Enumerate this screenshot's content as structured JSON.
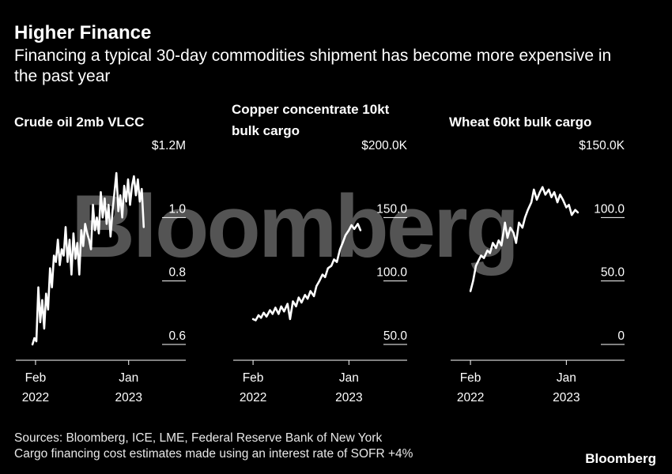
{
  "header": {
    "title": "Higher Finance",
    "subtitle": "Financing a typical 30-day commodities shipment has become more expensive in the past year"
  },
  "footer": {
    "source_line1": "Sources: Bloomberg, ICE, LME, Federal Reserve Bank of New York",
    "source_line2": "Cargo financing cost estimates made using an interest rate of SOFR +4%",
    "brand": "Bloomberg"
  },
  "watermark": "Bloomberg",
  "colors": {
    "background": "#000000",
    "line": "#ffffff",
    "grid": "#ffffff",
    "text": "#ffffff"
  },
  "chart_data": [
    {
      "type": "line",
      "title": "Crude oil 2mb VLCC",
      "title_lines": [
        "Crude oil 2mb VLCC"
      ],
      "x_ticks": [
        {
          "date": "2022-02-01",
          "line1": "Feb",
          "line2": "2022"
        },
        {
          "date": "2023-01-01",
          "line1": "Jan",
          "line2": "2023"
        }
      ],
      "x_range": [
        "2022-01-18",
        "2023-05-15"
      ],
      "ylim": [
        0.6,
        1.2
      ],
      "y_ticks": [
        {
          "value": 1.2,
          "label": "$1.2M"
        },
        {
          "value": 1.0,
          "label": "1.0"
        },
        {
          "value": 0.8,
          "label": "0.8"
        },
        {
          "value": 0.6,
          "label": "0.6"
        }
      ],
      "grid": true,
      "series": [
        {
          "x": [
            "2022-01-21",
            "2022-01-28",
            "2022-02-04",
            "2022-02-11",
            "2022-02-18",
            "2022-02-25",
            "2022-03-04",
            "2022-03-11",
            "2022-03-18",
            "2022-03-25",
            "2022-04-01",
            "2022-04-08",
            "2022-04-15",
            "2022-04-22",
            "2022-04-29",
            "2022-05-06",
            "2022-05-13",
            "2022-05-20",
            "2022-05-27",
            "2022-06-03",
            "2022-06-10",
            "2022-06-17",
            "2022-06-24",
            "2022-07-01",
            "2022-07-08",
            "2022-07-15",
            "2022-07-22",
            "2022-07-29",
            "2022-08-05",
            "2022-08-12",
            "2022-08-19",
            "2022-08-26",
            "2022-09-02",
            "2022-09-09",
            "2022-09-16",
            "2022-09-23",
            "2022-09-30",
            "2022-10-07",
            "2022-10-14",
            "2022-10-21",
            "2022-10-28",
            "2022-11-04",
            "2022-11-11",
            "2022-11-18",
            "2022-11-25",
            "2022-12-02",
            "2022-12-09",
            "2022-12-16",
            "2022-12-23",
            "2022-12-30",
            "2023-01-06",
            "2023-01-13",
            "2023-01-20",
            "2023-01-27",
            "2023-02-03",
            "2023-02-10",
            "2023-02-17",
            "2023-02-24"
          ],
          "y": [
            0.6,
            0.62,
            0.61,
            0.78,
            0.67,
            0.74,
            0.65,
            0.76,
            0.71,
            0.84,
            0.78,
            0.88,
            0.86,
            0.93,
            0.85,
            0.9,
            0.88,
            0.97,
            0.86,
            0.93,
            0.82,
            0.95,
            0.87,
            0.92,
            0.82,
            0.96,
            0.91,
            0.98,
            0.95,
            0.93,
            0.9,
            1.04,
            0.96,
            1.0,
            0.95,
            1.08,
            1.0,
            1.06,
            0.98,
            1.04,
            0.94,
            1.02,
            1.08,
            1.14,
            1.02,
            1.07,
            1.0,
            1.1,
            1.05,
            1.12,
            1.04,
            1.1,
            1.13,
            1.07,
            1.12,
            1.05,
            1.09,
            0.97
          ]
        }
      ]
    },
    {
      "type": "line",
      "title": "Copper concentrate 10kt bulk cargo",
      "title_lines": [
        "Copper concentrate 10kt",
        "bulk cargo"
      ],
      "x_ticks": [
        {
          "date": "2022-02-01",
          "line1": "Feb",
          "line2": "2022"
        },
        {
          "date": "2023-01-01",
          "line1": "Jan",
          "line2": "2023"
        }
      ],
      "x_range": [
        "2022-01-18",
        "2023-05-15"
      ],
      "ylim": [
        50,
        200
      ],
      "y_ticks": [
        {
          "value": 200,
          "label": "$200.0K"
        },
        {
          "value": 150,
          "label": "150.0"
        },
        {
          "value": 100,
          "label": "100.0"
        },
        {
          "value": 50,
          "label": "50.0"
        }
      ],
      "grid": true,
      "series": [
        {
          "x": [
            "2022-02-01",
            "2022-02-10",
            "2022-02-20",
            "2022-03-01",
            "2022-03-10",
            "2022-03-20",
            "2022-04-01",
            "2022-04-10",
            "2022-04-20",
            "2022-05-01",
            "2022-05-10",
            "2022-05-20",
            "2022-06-01",
            "2022-06-10",
            "2022-06-20",
            "2022-07-01",
            "2022-07-10",
            "2022-07-20",
            "2022-08-01",
            "2022-08-10",
            "2022-08-20",
            "2022-09-01",
            "2022-09-10",
            "2022-09-20",
            "2022-10-01",
            "2022-10-10",
            "2022-10-20",
            "2022-11-01",
            "2022-11-10",
            "2022-11-20",
            "2022-12-01",
            "2022-12-10",
            "2022-12-20",
            "2023-01-01",
            "2023-01-10",
            "2023-01-20",
            "2023-02-01",
            "2023-02-10"
          ],
          "y": [
            70,
            69,
            73,
            71,
            75,
            72,
            77,
            74,
            79,
            74,
            80,
            76,
            82,
            70,
            84,
            80,
            87,
            83,
            89,
            86,
            92,
            88,
            96,
            100,
            105,
            103,
            110,
            112,
            117,
            115,
            125,
            130,
            136,
            140,
            144,
            141,
            145,
            140
          ]
        }
      ]
    },
    {
      "type": "line",
      "title": "Wheat 60kt bulk cargo",
      "title_lines": [
        "Wheat 60kt bulk cargo"
      ],
      "x_ticks": [
        {
          "date": "2022-02-01",
          "line1": "Feb",
          "line2": "2022"
        },
        {
          "date": "2023-01-01",
          "line1": "Jan",
          "line2": "2023"
        }
      ],
      "x_range": [
        "2022-01-18",
        "2023-05-15"
      ],
      "ylim": [
        0,
        150
      ],
      "y_ticks": [
        {
          "value": 150,
          "label": "$150.0K"
        },
        {
          "value": 100,
          "label": "100.0"
        },
        {
          "value": 50,
          "label": "50.0"
        },
        {
          "value": 0,
          "label": "0"
        }
      ],
      "grid": true,
      "series": [
        {
          "x": [
            "2022-02-01",
            "2022-02-10",
            "2022-02-20",
            "2022-03-01",
            "2022-03-10",
            "2022-03-20",
            "2022-04-01",
            "2022-04-10",
            "2022-04-20",
            "2022-05-01",
            "2022-05-10",
            "2022-05-20",
            "2022-06-01",
            "2022-06-10",
            "2022-06-20",
            "2022-07-01",
            "2022-07-10",
            "2022-07-20",
            "2022-08-01",
            "2022-08-10",
            "2022-08-20",
            "2022-09-01",
            "2022-09-10",
            "2022-09-20",
            "2022-10-01",
            "2022-10-10",
            "2022-10-20",
            "2022-11-01",
            "2022-11-10",
            "2022-11-20",
            "2022-12-01",
            "2022-12-10",
            "2022-12-20",
            "2023-01-01",
            "2023-01-10",
            "2023-01-20",
            "2023-02-01",
            "2023-02-10"
          ],
          "y": [
            42,
            50,
            62,
            66,
            70,
            68,
            74,
            72,
            80,
            76,
            82,
            78,
            96,
            84,
            92,
            88,
            80,
            96,
            92,
            100,
            106,
            112,
            122,
            114,
            120,
            124,
            118,
            122,
            116,
            120,
            112,
            118,
            114,
            108,
            110,
            102,
            106,
            104
          ]
        }
      ]
    }
  ]
}
